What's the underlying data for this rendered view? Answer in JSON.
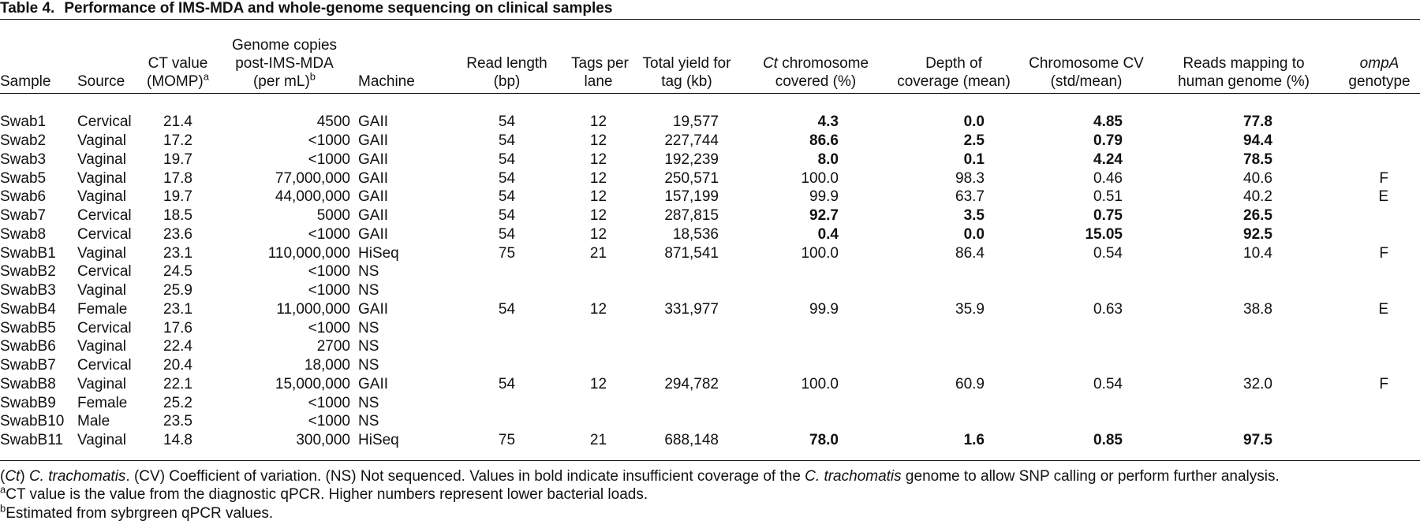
{
  "table": {
    "label": "Table 4.",
    "title": "Performance of IMS-MDA and whole-genome sequencing on clinical samples",
    "headers": [
      {
        "lines": [
          [
            "Sample"
          ]
        ]
      },
      {
        "lines": [
          [
            "Source"
          ]
        ]
      },
      {
        "lines": [
          [
            "CT value"
          ],
          [
            "(MOMP)"
          ]
        ],
        "sup": "a"
      },
      {
        "lines": [
          [
            "Genome copies"
          ],
          [
            "post-IMS-MDA"
          ],
          [
            "(per mL)"
          ]
        ],
        "sup": "b"
      },
      {
        "lines": [
          [
            "Machine"
          ]
        ]
      },
      {
        "lines": [
          [
            "Read length"
          ],
          [
            "(bp)"
          ]
        ]
      },
      {
        "lines": [
          [
            "Tags per"
          ],
          [
            "lane"
          ]
        ]
      },
      {
        "lines": [
          [
            "Total yield for"
          ],
          [
            "tag (kb)"
          ]
        ]
      },
      {
        "lines": [
          [
            {
              "text": "Ct",
              "italic": true
            },
            " chromosome"
          ],
          [
            "covered (%)"
          ]
        ]
      },
      {
        "lines": [
          [
            "Depth of"
          ],
          [
            "coverage (mean)"
          ]
        ]
      },
      {
        "lines": [
          [
            "Chromosome CV"
          ],
          [
            "(std/mean)"
          ]
        ]
      },
      {
        "lines": [
          [
            "Reads mapping to"
          ],
          [
            "human genome (%)"
          ]
        ]
      },
      {
        "lines": [
          [
            {
              "text": "ompA",
              "italic": true
            }
          ],
          [
            "genotype"
          ]
        ]
      }
    ],
    "bold_columns": [
      8,
      9,
      10,
      11
    ],
    "rows": [
      {
        "cells": [
          "Swab1",
          "Cervical",
          "21.4",
          "4500",
          "GAII",
          "54",
          "12",
          "19,577",
          "4.3",
          "0.0",
          "4.85",
          "77.8",
          null
        ],
        "insufficient": true
      },
      {
        "cells": [
          "Swab2",
          "Vaginal",
          "17.2",
          "<1000",
          "GAII",
          "54",
          "12",
          "227,744",
          "86.6",
          "2.5",
          "0.79",
          "94.4",
          null
        ],
        "insufficient": true
      },
      {
        "cells": [
          "Swab3",
          "Vaginal",
          "19.7",
          "<1000",
          "GAII",
          "54",
          "12",
          "192,239",
          "8.0",
          "0.1",
          "4.24",
          "78.5",
          null
        ],
        "insufficient": true
      },
      {
        "cells": [
          "Swab5",
          "Vaginal",
          "17.8",
          "77,000,000",
          "GAII",
          "54",
          "12",
          "250,571",
          "100.0",
          "98.3",
          "0.46",
          "40.6",
          "F"
        ],
        "insufficient": false
      },
      {
        "cells": [
          "Swab6",
          "Vaginal",
          "19.7",
          "44,000,000",
          "GAII",
          "54",
          "12",
          "157,199",
          "99.9",
          "63.7",
          "0.51",
          "40.2",
          "E"
        ],
        "insufficient": false
      },
      {
        "cells": [
          "Swab7",
          "Cervical",
          "18.5",
          "5000",
          "GAII",
          "54",
          "12",
          "287,815",
          "92.7",
          "3.5",
          "0.75",
          "26.5",
          null
        ],
        "insufficient": true
      },
      {
        "cells": [
          "Swab8",
          "Cervical",
          "23.6",
          "<1000",
          "GAII",
          "54",
          "12",
          "18,536",
          "0.4",
          "0.0",
          "15.05",
          "92.5",
          null
        ],
        "insufficient": true
      },
      {
        "cells": [
          "SwabB1",
          "Vaginal",
          "23.1",
          "110,000,000",
          "HiSeq",
          "75",
          "21",
          "871,541",
          "100.0",
          "86.4",
          "0.54",
          "10.4",
          "F"
        ],
        "insufficient": false
      },
      {
        "cells": [
          "SwabB2",
          "Cervical",
          "24.5",
          "<1000",
          "NS"
        ],
        "insufficient": false
      },
      {
        "cells": [
          "SwabB3",
          "Vaginal",
          "25.9",
          "<1000",
          "NS"
        ],
        "insufficient": false
      },
      {
        "cells": [
          "SwabB4",
          "Female",
          "23.1",
          "11,000,000",
          "GAII",
          "54",
          "12",
          "331,977",
          "99.9",
          "35.9",
          "0.63",
          "38.8",
          "E"
        ],
        "insufficient": false
      },
      {
        "cells": [
          "SwabB5",
          "Cervical",
          "17.6",
          "<1000",
          "NS"
        ],
        "insufficient": false
      },
      {
        "cells": [
          "SwabB6",
          "Vaginal",
          "22.4",
          "2700",
          "NS"
        ],
        "insufficient": false
      },
      {
        "cells": [
          "SwabB7",
          "Cervical",
          "20.4",
          "18,000",
          "NS"
        ],
        "insufficient": false
      },
      {
        "cells": [
          "SwabB8",
          "Vaginal",
          "22.1",
          "15,000,000",
          "GAII",
          "54",
          "12",
          "294,782",
          "100.0",
          "60.9",
          "0.54",
          "32.0",
          "F"
        ],
        "insufficient": false
      },
      {
        "cells": [
          "SwabB9",
          "Female",
          "25.2",
          "<1000",
          "NS"
        ],
        "insufficient": false
      },
      {
        "cells": [
          "SwabB10",
          "Male",
          "23.5",
          "<1000",
          "NS"
        ],
        "insufficient": false
      },
      {
        "cells": [
          "SwabB11",
          "Vaginal",
          "14.8",
          "300,000",
          "HiSeq",
          "75",
          "21",
          "688,148",
          "78.0",
          "1.6",
          "0.85",
          "97.5",
          null
        ],
        "insufficient": true
      }
    ],
    "footnotes": [
      {
        "segments": [
          "(",
          {
            "text": "Ct",
            "italic": true
          },
          ") ",
          {
            "text": "C. trachomatis",
            "italic": true
          },
          ". (CV) Coefficient of variation. (NS) Not sequenced. Values in bold indicate insufficient coverage of the ",
          {
            "text": "C. trachomatis",
            "italic": true
          },
          " genome to allow SNP calling or perform further analysis."
        ]
      },
      {
        "sup": "a",
        "segments": [
          "CT value is the value from the diagnostic qPCR. Higher numbers represent lower bacterial loads."
        ]
      },
      {
        "sup": "b",
        "segments": [
          "Estimated from sybrgreen qPCR values."
        ]
      }
    ]
  }
}
